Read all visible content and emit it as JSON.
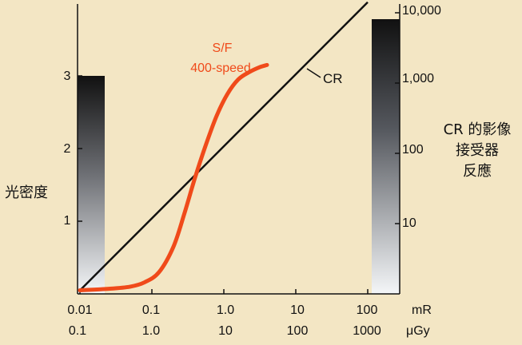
{
  "chart_data": {
    "type": "line",
    "title": "",
    "xlabel_units": [
      "mR",
      "μGy"
    ],
    "x_ticks_top": [
      "0.01",
      "0.1",
      "1.0",
      "10",
      "100"
    ],
    "x_ticks_bottom": [
      "0.1",
      "1.0",
      "10",
      "100",
      "1000"
    ],
    "x_decades": [
      -2,
      -1,
      0,
      1,
      2
    ],
    "xlim_log10_mR": [
      -2,
      2
    ],
    "left_axis": {
      "label": "光密度",
      "ticks": [
        "1",
        "2",
        "3"
      ],
      "tick_values": [
        1,
        2,
        3
      ],
      "ylim": [
        0,
        3.9
      ]
    },
    "right_axis": {
      "label_lines": [
        "CR 的影像",
        "接受器",
        "反應"
      ],
      "ticks": [
        "10",
        "100",
        "1,000",
        "10,000"
      ],
      "tick_values": [
        10,
        100,
        1000,
        10000
      ],
      "log_range": [
        0,
        4
      ]
    },
    "series": [
      {
        "name": "S/F 400-speed",
        "label_lines": [
          "S/F",
          "400-speed"
        ],
        "color": "#f04a1a",
        "x_log10_mR": [
          -2.0,
          -1.6,
          -1.3,
          -1.1,
          -0.9,
          -0.7,
          -0.55,
          -0.4,
          -0.25,
          -0.1,
          0.05,
          0.2,
          0.35,
          0.5,
          0.6
        ],
        "optical_density": [
          0.05,
          0.07,
          0.1,
          0.16,
          0.3,
          0.65,
          1.1,
          1.6,
          2.05,
          2.45,
          2.75,
          2.95,
          3.05,
          3.12,
          3.15
        ]
      },
      {
        "name": "CR",
        "label": "CR",
        "color": "#111111",
        "x_log10_mR": [
          -2.0,
          2.0
        ],
        "log_response": [
          0.05,
          4.15
        ]
      }
    ],
    "density_bars": [
      {
        "name": "left-density-bar",
        "from_value": 0,
        "to_value": 3,
        "axis": "left"
      },
      {
        "name": "right-response-bar",
        "from_value": 0,
        "to_value": 4,
        "axis": "right"
      }
    ]
  }
}
